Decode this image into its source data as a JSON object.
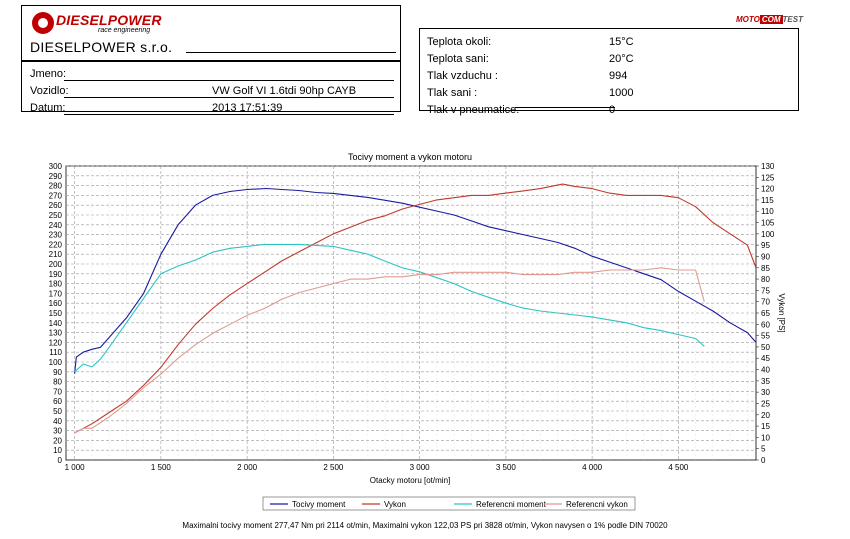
{
  "header": {
    "logo": {
      "brand": "DIESELPOWER",
      "tagline": "race engineering"
    },
    "company": "DIESELPOWER s.r.o.",
    "motocom_logo": {
      "part1": "MOTO",
      "part2": "COM",
      "part3": "TEST"
    },
    "customer": [
      {
        "label": "Jmeno:",
        "value": ""
      },
      {
        "label": "Vozidlo:",
        "value": "VW Golf VI 1.6tdi 90hp CAYB"
      },
      {
        "label": "Datum:",
        "value": "2013 17:51:39"
      }
    ],
    "conditions": [
      {
        "label": "Teplota okoli:",
        "value": "15°C"
      },
      {
        "label": "Teplota sani:",
        "value": "20°C"
      },
      {
        "label": "Tlak vzduchu :",
        "value": "994"
      },
      {
        "label": "Tlak sani :",
        "value": "1000"
      },
      {
        "label": "Tlak v pneumatice:",
        "value": "0"
      }
    ]
  },
  "chart_data": {
    "type": "line",
    "title": "Tocivy moment a vykon motoru",
    "xlabel": "Otacky motoru [ot/min]",
    "ylabel_left": "",
    "ylabel_right": "Vykon [PS]",
    "xlim": [
      950,
      4950
    ],
    "ylim_left": [
      0,
      300
    ],
    "ylim_right": [
      0,
      130
    ],
    "x_ticks": [
      1000,
      1500,
      2000,
      2500,
      3000,
      3500,
      4000,
      4500
    ],
    "x_tick_labels": [
      "1 000",
      "1 500",
      "2 000",
      "2 500",
      "3 000",
      "3 500",
      "4 000",
      "4 500"
    ],
    "y_left_ticks": [
      0,
      10,
      20,
      30,
      40,
      50,
      60,
      70,
      80,
      90,
      100,
      110,
      120,
      130,
      140,
      150,
      160,
      170,
      180,
      190,
      200,
      210,
      220,
      230,
      240,
      250,
      260,
      270,
      280,
      290,
      300
    ],
    "y_right_ticks": [
      0,
      5,
      10,
      15,
      20,
      25,
      30,
      35,
      40,
      45,
      50,
      55,
      60,
      65,
      70,
      75,
      80,
      85,
      90,
      95,
      100,
      105,
      110,
      115,
      120,
      125,
      130
    ],
    "grid": true,
    "legend_position": "bottom",
    "series": [
      {
        "name": "Tocivy moment",
        "axis": "left",
        "color": "#1a1aa0",
        "x": [
          1000,
          1010,
          1050,
          1100,
          1150,
          1200,
          1300,
          1400,
          1500,
          1600,
          1700,
          1800,
          1900,
          2000,
          2114,
          2200,
          2300,
          2400,
          2500,
          2600,
          2700,
          2800,
          2900,
          3000,
          3100,
          3200,
          3300,
          3400,
          3500,
          3600,
          3700,
          3800,
          3900,
          4000,
          4100,
          4200,
          4300,
          4400,
          4500,
          4600,
          4700,
          4800,
          4900,
          4950
        ],
        "values": [
          88,
          105,
          110,
          113,
          115,
          125,
          145,
          170,
          210,
          240,
          260,
          270,
          274,
          276,
          277,
          276,
          275,
          273,
          272,
          270,
          268,
          265,
          262,
          258,
          254,
          250,
          244,
          238,
          234,
          230,
          226,
          222,
          216,
          208,
          202,
          196,
          190,
          184,
          172,
          162,
          152,
          140,
          130,
          120
        ]
      },
      {
        "name": "Vykon",
        "axis": "right",
        "color": "#c0392b",
        "x": [
          1000,
          1050,
          1100,
          1200,
          1300,
          1400,
          1500,
          1600,
          1700,
          1800,
          1900,
          2000,
          2100,
          2200,
          2300,
          2400,
          2500,
          2600,
          2700,
          2800,
          2900,
          3000,
          3100,
          3200,
          3300,
          3400,
          3500,
          3600,
          3700,
          3828,
          3900,
          4000,
          4100,
          4200,
          4300,
          4400,
          4500,
          4600,
          4700,
          4800,
          4900,
          4950
        ],
        "values": [
          12,
          14,
          16,
          21,
          26,
          33,
          41,
          51,
          60,
          67,
          73,
          78,
          83,
          88,
          92,
          96,
          100,
          103,
          106,
          108,
          111,
          113,
          115,
          116,
          117,
          117,
          118,
          119,
          120,
          122,
          121,
          120,
          118,
          117,
          117,
          117,
          116,
          112,
          105,
          100,
          95,
          85
        ]
      },
      {
        "name": "Referencni moment",
        "axis": "left",
        "color": "#2ec4c4",
        "x": [
          1000,
          1050,
          1100,
          1150,
          1200,
          1300,
          1400,
          1500,
          1600,
          1700,
          1800,
          1900,
          2000,
          2100,
          2200,
          2300,
          2400,
          2500,
          2600,
          2700,
          2800,
          2900,
          3000,
          3100,
          3200,
          3300,
          3400,
          3500,
          3600,
          3700,
          3800,
          3900,
          4000,
          4100,
          4200,
          4300,
          4400,
          4500,
          4600,
          4650
        ],
        "values": [
          90,
          98,
          95,
          103,
          115,
          140,
          165,
          190,
          198,
          204,
          212,
          216,
          218,
          220,
          220,
          220,
          219,
          218,
          214,
          210,
          203,
          196,
          192,
          186,
          180,
          172,
          166,
          160,
          155,
          152,
          150,
          148,
          146,
          143,
          140,
          135,
          132,
          128,
          124,
          116
        ]
      },
      {
        "name": "Referencni vykon",
        "axis": "right",
        "color": "#e09a8f",
        "x": [
          1000,
          1050,
          1100,
          1200,
          1300,
          1400,
          1500,
          1600,
          1700,
          1800,
          1900,
          2000,
          2100,
          2200,
          2300,
          2400,
          2500,
          2600,
          2700,
          2800,
          2900,
          3000,
          3100,
          3200,
          3300,
          3400,
          3500,
          3600,
          3700,
          3800,
          3900,
          4000,
          4100,
          4200,
          4300,
          4400,
          4500,
          4600,
          4650
        ],
        "values": [
          12,
          14,
          14,
          19,
          25,
          32,
          38,
          45,
          51,
          56,
          60,
          64,
          67,
          71,
          74,
          76,
          78,
          80,
          80,
          81,
          81,
          82,
          82,
          83,
          83,
          83,
          83,
          82,
          82,
          82,
          83,
          83,
          84,
          84,
          84,
          85,
          84,
          84,
          70
        ]
      }
    ],
    "footer": "Maximalni tocivy moment 277,47 Nm pri 2114 ot/min,  Maximalni vykon 122,03 PS pri 3828 ot/min,  Vykon navysen o 1% podle DIN 70020"
  }
}
